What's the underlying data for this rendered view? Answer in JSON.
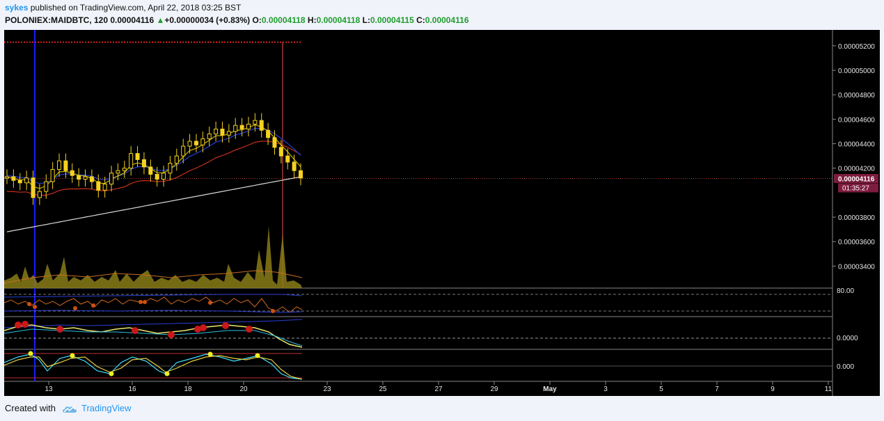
{
  "header": {
    "user": "sykes",
    "published": "published on TradingView.com, April 22, 2018 03:25 BST",
    "symbol": "POLONIEX:MAIDBTC, 120",
    "last": "0.00004116",
    "change": "+0.00000034 (+0.83%)",
    "o_label": "O:",
    "o": "0.00004118",
    "h_label": "H:",
    "h": "0.00004118",
    "l_label": "L:",
    "l": "0.00004115",
    "c_label": "C:",
    "c": "0.00004116",
    "up_arrow": "▲"
  },
  "footer": {
    "created": "Created with",
    "brand": "TradingView",
    "icon": "tradingview-cloud-icon"
  },
  "colors": {
    "background": "#000000",
    "candle": "#f5d21f",
    "ema_yellow": "#c8b400",
    "ema_blue": "#1f3fd6",
    "ema_red": "#c8301c",
    "ema_white": "#d8d8d8",
    "price_tag": "#7d1c3e",
    "axis_text": "#e6e6e6",
    "grid_dash": "#777777"
  },
  "chart_data": {
    "type": "line",
    "title": "POLONIEX:MAIDBTC, 120",
    "x_ticks": [
      "13",
      "16",
      "18",
      "20",
      "23",
      "25",
      "27",
      "29",
      "May",
      "3",
      "5",
      "7",
      "9",
      "11"
    ],
    "y_ticks": [
      "0.00005200",
      "0.00005000",
      "0.00004800",
      "0.00004600",
      "0.00004400",
      "0.00004200",
      "0.00003800",
      "0.00003600",
      "0.00003400"
    ],
    "ylim": [
      3.22e-05,
      5.33e-05
    ],
    "current_price_label": "0.00004116",
    "countdown_label": "01:35:27",
    "price_line": 4.116e-05,
    "resistance_line": 5.23e-05,
    "series": [
      {
        "name": "",
        "color": "#f5d21f",
        "values": [
          4.13e-05,
          4.1e-05,
          4.08e-05,
          4.12e-05,
          3.96e-05,
          4.01e-05,
          4.09e-05,
          4.19e-05,
          4.26e-05,
          4.18e-05,
          4.14e-05,
          4.11e-05,
          4.13e-05,
          4.09e-05,
          4.02e-05,
          4.07e-05,
          4.16e-05,
          4.18e-05,
          4.2e-05,
          4.32e-05,
          4.27e-05,
          4.21e-05,
          4.15e-05,
          4.11e-05,
          4.16e-05,
          4.24e-05,
          4.3e-05,
          4.38e-05,
          4.42e-05,
          4.39e-05,
          4.44e-05,
          4.48e-05,
          4.52e-05,
          4.47e-05,
          4.5e-05,
          4.55e-05,
          4.52e-05,
          4.56e-05,
          4.59e-05,
          4.51e-05,
          4.45e-05,
          4.37e-05,
          4.3e-05,
          4.25e-05,
          4.18e-05,
          4.12e-05
        ]
      }
    ]
  },
  "osc_labels": {
    "rsi_upper": "80.00",
    "macd_zero": "0.0000",
    "stoch_zero": "0.000"
  }
}
